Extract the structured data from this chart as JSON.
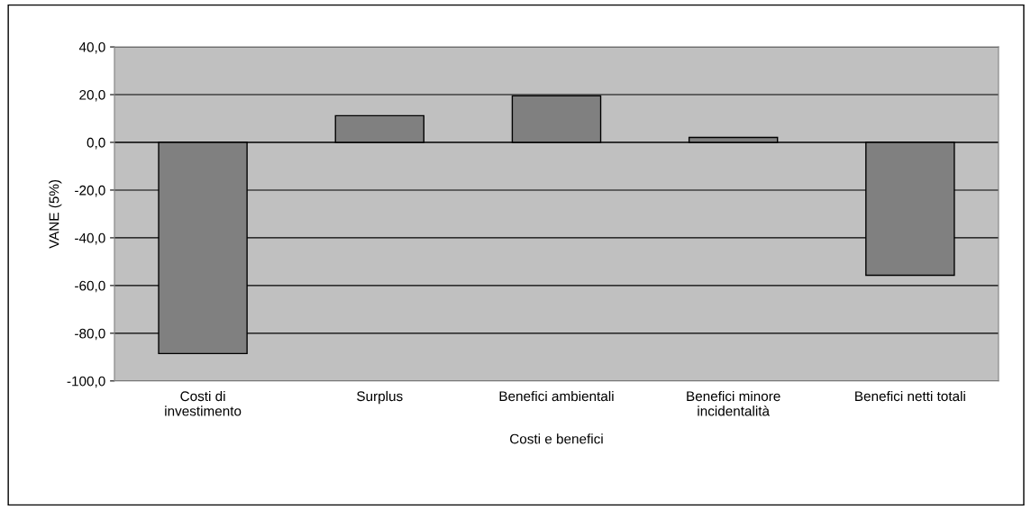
{
  "chart_data": {
    "type": "bar",
    "categories": [
      "Costi di\ninvestimento",
      "Surplus",
      "Benefici ambientali",
      "Benefici minore\nincidentalità",
      "Benefici netti totali"
    ],
    "values": [
      -88.5,
      11.2,
      19.5,
      2.1,
      -55.7
    ],
    "color": "#808080",
    "xlabel": "Costi e benefici",
    "ylabel": "VANE (5%)",
    "ylim": [
      -100,
      40
    ],
    "yticks": [
      {
        "value": -100,
        "label": "-100,0"
      },
      {
        "value": -80,
        "label": "-80,0"
      },
      {
        "value": -60,
        "label": "-60,0"
      },
      {
        "value": -40,
        "label": "-40,0"
      },
      {
        "value": -20,
        "label": "-20,0"
      },
      {
        "value": 0,
        "label": "0,0"
      },
      {
        "value": 20,
        "label": "20,0"
      },
      {
        "value": 40,
        "label": "40,0"
      }
    ],
    "grid": "y"
  }
}
